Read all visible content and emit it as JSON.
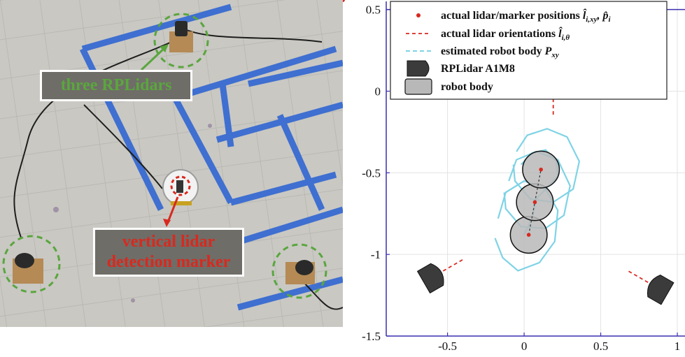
{
  "photo": {
    "callout_top": "three RPLidars",
    "callout_bottom_line1": "vertical lidar",
    "callout_bottom_line2": "detection marker",
    "colors": {
      "green_accent": "#5aa63e",
      "red_accent": "#d8291f",
      "tape": "#3f6fd0",
      "floor": "#c9c8c3"
    }
  },
  "chart_data": {
    "type": "scatter",
    "xlim": [
      -0.9,
      1.05
    ],
    "ylim": [
      -1.5,
      0.55
    ],
    "xticks": [
      "-0.5",
      "0",
      "0.5",
      "1"
    ],
    "xtick_values": [
      -0.5,
      0,
      0.5,
      1
    ],
    "yticks": [
      "0.5",
      "0",
      "-0.5",
      "-1",
      "-1.5"
    ],
    "ytick_values": [
      0.5,
      0,
      -0.5,
      -1,
      -1.5
    ],
    "legend": {
      "placement": "top-left",
      "items": [
        {
          "key": "markers",
          "text": "actual lidar/marker positions ",
          "math": "l̂",
          "math_sub": "i,xy",
          "math2": ", p̂",
          "math2_sub": "i"
        },
        {
          "key": "orient",
          "text": "actual lidar orientations ",
          "math": "l̂",
          "math_sub": "i,θ"
        },
        {
          "key": "estimated",
          "text": "estimated robot body ",
          "math": "P",
          "math_sub": "xy"
        },
        {
          "key": "lidar",
          "text": "RPLidar A1M8"
        },
        {
          "key": "body",
          "text": "robot body"
        }
      ]
    },
    "lidars": [
      {
        "x": 0.19,
        "y": 0.07,
        "theta_deg": -90
      },
      {
        "x": -0.6,
        "y": -1.14,
        "theta_deg": 30
      },
      {
        "x": 0.88,
        "y": -1.21,
        "theta_deg": 150
      }
    ],
    "marker_positions": [
      {
        "x": 0.03,
        "y": -0.88
      },
      {
        "x": 0.07,
        "y": -0.68
      },
      {
        "x": 0.11,
        "y": -0.48
      }
    ],
    "robot_body_radius": 0.12,
    "estimated_body_series": [
      {
        "points": [
          [
            -0.17,
            -0.78
          ],
          [
            -0.12,
            -0.62
          ],
          [
            0.0,
            -0.55
          ],
          [
            0.14,
            -0.6
          ],
          [
            0.22,
            -0.73
          ],
          [
            0.2,
            -0.92
          ],
          [
            0.1,
            -1.05
          ],
          [
            -0.04,
            -1.1
          ],
          [
            -0.14,
            -1.02
          ],
          [
            -0.19,
            -0.9
          ]
        ]
      },
      {
        "points": [
          [
            -0.1,
            -0.55
          ],
          [
            -0.05,
            -0.42
          ],
          [
            0.08,
            -0.37
          ],
          [
            0.22,
            -0.42
          ],
          [
            0.3,
            -0.58
          ],
          [
            0.26,
            -0.76
          ],
          [
            0.14,
            -0.84
          ],
          [
            -0.02,
            -0.83
          ],
          [
            -0.12,
            -0.72
          ],
          [
            -0.13,
            -0.62
          ]
        ]
      },
      {
        "points": [
          [
            -0.05,
            -0.37
          ],
          [
            0.02,
            -0.27
          ],
          [
            0.15,
            -0.23
          ],
          [
            0.28,
            -0.28
          ],
          [
            0.36,
            -0.43
          ],
          [
            0.32,
            -0.6
          ],
          [
            0.19,
            -0.68
          ],
          [
            0.04,
            -0.66
          ],
          [
            -0.06,
            -0.55
          ],
          [
            -0.07,
            -0.45
          ]
        ]
      },
      {
        "points": [
          [
            -0.02,
            -0.45
          ],
          [
            0.05,
            -0.38
          ],
          [
            0.14,
            -0.36
          ],
          [
            0.21,
            -0.43
          ],
          [
            0.22,
            -0.52
          ],
          [
            0.14,
            -0.6
          ],
          [
            0.08,
            -0.66
          ],
          [
            0.05,
            -0.78
          ],
          [
            0.0,
            -0.88
          ]
        ]
      }
    ],
    "colors": {
      "marker": "#d8291f",
      "estimated": "#7fd3e6",
      "body_fill": "#b8b8b8",
      "lidar_fill": "#3b3b3b",
      "axis": "#3a2fb0"
    }
  }
}
